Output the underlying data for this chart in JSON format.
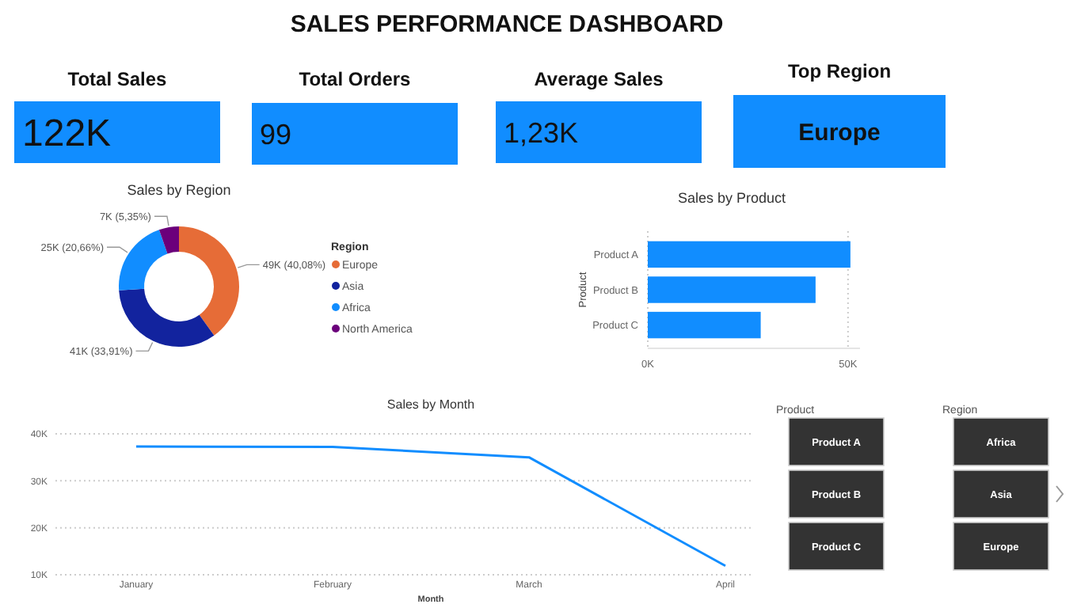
{
  "chart_data": [
    {
      "type": "other",
      "title": "SALES PERFORMANCE DASHBOARD",
      "annotations": [
        "Total Sales",
        "122K",
        "Total Orders",
        "99",
        "Average Sales",
        "1,23K",
        "Top Region",
        "Europe"
      ]
    },
    {
      "type": "donut",
      "title": "Sales by Region",
      "legend_title": "Region",
      "legend": "right",
      "categories": [
        "Europe",
        "Asia",
        "Africa",
        "North America"
      ],
      "values": [
        40.08,
        33.91,
        20.66,
        5.35
      ],
      "colors": [
        "#e66c37",
        "#12239e",
        "#118dff",
        "#6b007b"
      ],
      "value_labels": [
        "49K (40,08%)",
        "41K (33,91%)",
        "25K (20,66%)",
        "7K (5,35%)"
      ]
    },
    {
      "type": "bar",
      "orientation": "horizontal",
      "title": "Sales by Product",
      "ylabel": "Product",
      "categories": [
        "Product A",
        "Product B",
        "Product C"
      ],
      "values": [
        50600,
        41900,
        28200
      ],
      "color": "#118dff",
      "xlim": [
        0,
        53000
      ],
      "xticks": [
        {
          "value": 0,
          "label": "0K"
        },
        {
          "value": 50000,
          "label": "50K"
        }
      ],
      "grid": "x"
    },
    {
      "type": "line",
      "title": "Sales by Month",
      "xlabel": "Month",
      "categories": [
        "January",
        "February",
        "March",
        "April"
      ],
      "values": [
        37300,
        37200,
        35000,
        11900
      ],
      "color": "#118dff",
      "ylim": [
        10000,
        40000
      ],
      "yticks": [
        {
          "value": 10000,
          "label": "10K"
        },
        {
          "value": 20000,
          "label": "20K"
        },
        {
          "value": 30000,
          "label": "30K"
        },
        {
          "value": 40000,
          "label": "40K"
        }
      ],
      "grid": "y",
      "marker": "none"
    },
    {
      "type": "other",
      "title": "Product",
      "annotations": [
        "Product A",
        "Product B",
        "Product C"
      ]
    },
    {
      "type": "other",
      "title": "Region",
      "annotations": [
        "Africa",
        "Asia",
        "Europe"
      ]
    }
  ]
}
